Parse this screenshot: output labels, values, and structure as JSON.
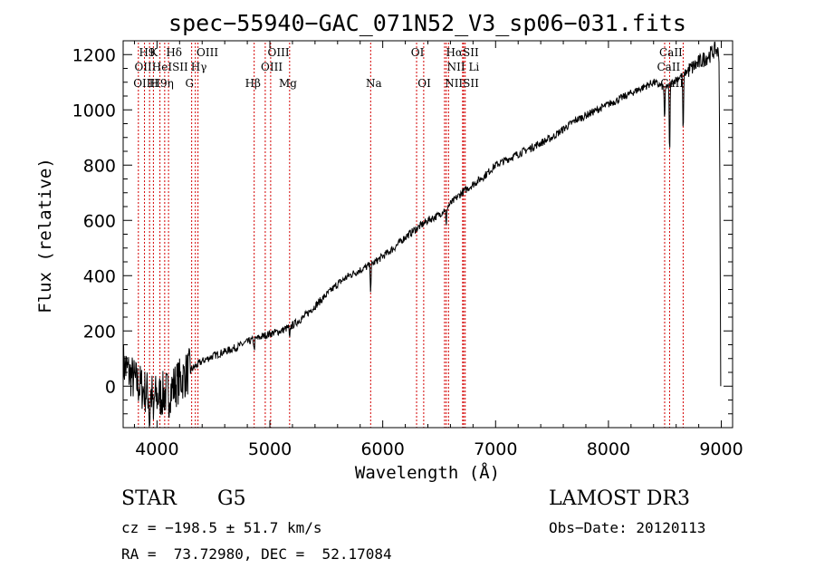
{
  "chart_data": {
    "type": "line",
    "title": "spec−55940−GAC_071N52_V3_sp06−031.fits",
    "xlabel": "Wavelength (Å)",
    "ylabel": "Flux (relative)",
    "xlim": [
      3700,
      9100
    ],
    "ylim": [
      -150,
      1250
    ],
    "xticks": [
      4000,
      5000,
      6000,
      7000,
      8000,
      9000
    ],
    "yticks": [
      0,
      200,
      400,
      600,
      800,
      1000,
      1200
    ],
    "series": [
      {
        "name": "spectrum",
        "x": [
          3700,
          3800,
          3900,
          4000,
          4100,
          4200,
          4300,
          4400,
          4500,
          4600,
          4700,
          4800,
          4900,
          5000,
          5100,
          5200,
          5300,
          5400,
          5500,
          5600,
          5700,
          5800,
          5900,
          6000,
          6100,
          6200,
          6300,
          6400,
          6500,
          6600,
          6700,
          6800,
          6900,
          7000,
          7100,
          7200,
          7300,
          7400,
          7500,
          7600,
          7700,
          7800,
          7900,
          8000,
          8100,
          8200,
          8300,
          8400,
          8500,
          8600,
          8700,
          8800,
          8900,
          8950,
          8980,
          9000
        ],
        "y": [
          80,
          20,
          -20,
          -40,
          -20,
          20,
          60,
          90,
          110,
          125,
          140,
          160,
          175,
          190,
          200,
          220,
          250,
          290,
          330,
          370,
          400,
          420,
          440,
          470,
          500,
          540,
          570,
          600,
          620,
          660,
          700,
          730,
          760,
          800,
          820,
          840,
          860,
          880,
          900,
          930,
          960,
          980,
          1000,
          1020,
          1040,
          1060,
          1080,
          1100,
          1080,
          1110,
          1140,
          1170,
          1200,
          1220,
          1200,
          0
        ]
      }
    ],
    "absorption_dips": [
      {
        "x": 3934,
        "depth": 120
      },
      {
        "x": 3968,
        "depth": 110
      },
      {
        "x": 4102,
        "depth": 60
      },
      {
        "x": 4861,
        "depth": 40
      },
      {
        "x": 5175,
        "depth": 50
      },
      {
        "x": 5893,
        "depth": 90
      },
      {
        "x": 6563,
        "depth": 70
      },
      {
        "x": 8498,
        "depth": 120
      },
      {
        "x": 8542,
        "depth": 260
      },
      {
        "x": 8662,
        "depth": 220
      }
    ],
    "spectral_lines": [
      {
        "x": 3835,
        "label": "H9"
      },
      {
        "x": 3889,
        "label": "H8"
      },
      {
        "x": 3934,
        "label": "K"
      },
      {
        "x": 3968,
        "label": "H"
      },
      {
        "x": 4026,
        "label": "HeI"
      },
      {
        "x": 4068,
        "label": "SII"
      },
      {
        "x": 4102,
        "label": "Hδ"
      },
      {
        "x": 4307,
        "label": "G"
      },
      {
        "x": 4340,
        "label": "Hγ"
      },
      {
        "x": 4363,
        "label": "OIII"
      },
      {
        "x": 4861,
        "label": "Hβ"
      },
      {
        "x": 4959,
        "label": "OIII"
      },
      {
        "x": 5007,
        "label": "OIII"
      },
      {
        "x": 5175,
        "label": "Mg"
      },
      {
        "x": 5893,
        "label": "Na"
      },
      {
        "x": 6300,
        "label": "OI"
      },
      {
        "x": 6363,
        "label": "OI"
      },
      {
        "x": 6548,
        "label": "NII"
      },
      {
        "x": 6563,
        "label": "Hα"
      },
      {
        "x": 6583,
        "label": "NII"
      },
      {
        "x": 6708,
        "label": "Li"
      },
      {
        "x": 6717,
        "label": "SII"
      },
      {
        "x": 6731,
        "label": "SII"
      },
      {
        "x": 8498,
        "label": "CaII"
      },
      {
        "x": 8542,
        "label": "CaII"
      },
      {
        "x": 8662,
        "label": "CaII"
      }
    ],
    "line_label_rows": [
      [
        "H9",
        "K",
        "Hδ",
        "OIII",
        "OIII",
        "OI",
        "HαSII",
        "CaII"
      ],
      [
        "OIIHeISII",
        "Hγ",
        "OIII",
        "NII Li",
        "CaII"
      ],
      [
        "OIIH9η",
        "H",
        "G",
        "Hβ",
        "Mg",
        "Na",
        "OI",
        "NIISII",
        "CaII"
      ]
    ]
  },
  "info": {
    "object_class": "STAR",
    "subclass": "G5",
    "survey": "LAMOST DR3",
    "velocity": "cz = −198.5 ± 51.7 km/s",
    "obs_date": "Obs−Date: 20120113",
    "coordinates": "RA =  73.72980, DEC =  52.17084"
  },
  "colors": {
    "spectrum": "#000000",
    "line_marker": "#d40000",
    "axis": "#000000"
  }
}
